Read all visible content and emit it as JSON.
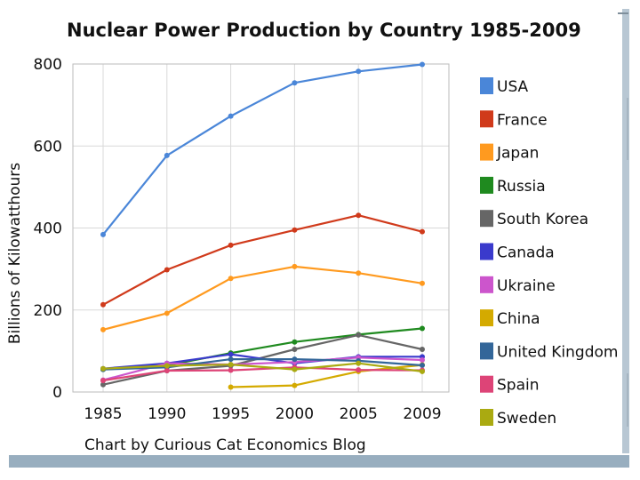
{
  "chart_data": {
    "type": "line",
    "title": "Nuclear Power Production by Country 1985-2009",
    "xlabel": "",
    "ylabel": "Billions of Kilowatthours",
    "credit": "Chart by Curious Cat Economics Blog",
    "x": [
      "1985",
      "1990",
      "1995",
      "2000",
      "2005",
      "2009"
    ],
    "ylim": [
      0,
      800
    ],
    "yticks": [
      "0",
      "200",
      "400",
      "600",
      "800"
    ],
    "grid": true,
    "legend_position": "right",
    "series": [
      {
        "name": "USA",
        "color": "#4a86d8",
        "values": [
          384,
          577,
          673,
          754,
          782,
          799
        ]
      },
      {
        "name": "France",
        "color": "#d03a1b",
        "values": [
          213,
          298,
          358,
          395,
          431,
          391
        ]
      },
      {
        "name": "Japan",
        "color": "#ff9a1f",
        "values": [
          152,
          192,
          277,
          306,
          290,
          265
        ]
      },
      {
        "name": "Russia",
        "color": "#1f8a1f",
        "values": [
          55,
          65,
          95,
          122,
          140,
          155
        ]
      },
      {
        "name": "South Korea",
        "color": "#666666",
        "values": [
          18,
          52,
          64,
          104,
          139,
          104
        ]
      },
      {
        "name": "Canada",
        "color": "#3a3acc",
        "values": [
          57,
          70,
          92,
          70,
          86,
          86
        ]
      },
      {
        "name": "Ukraine",
        "color": "#cc55cc",
        "values": [
          29,
          70,
          67,
          73,
          84,
          78
        ]
      },
      {
        "name": "China",
        "color": "#d4aa00",
        "values": [
          null,
          null,
          12,
          16,
          50,
          66
        ]
      },
      {
        "name": "United Kingdom",
        "color": "#336699",
        "values": [
          55,
          60,
          80,
          80,
          76,
          65
        ]
      },
      {
        "name": "Spain",
        "color": "#dd4477",
        "values": [
          28,
          52,
          53,
          60,
          54,
          53
        ]
      },
      {
        "name": "Sweden",
        "color": "#aaaa11",
        "values": [
          57,
          64,
          67,
          55,
          70,
          50
        ]
      }
    ]
  }
}
